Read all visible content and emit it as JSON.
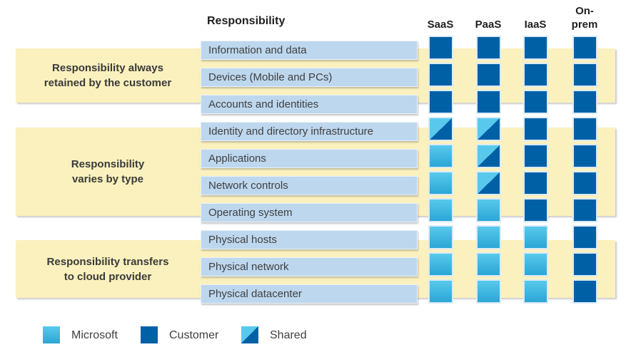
{
  "header": {
    "responsibility_label": "Responsibility",
    "columns": [
      "SaaS",
      "PaaS",
      "IaaS",
      "On-\nprem"
    ]
  },
  "bands": [
    {
      "label": "Responsibility always\nretained by the customer"
    },
    {
      "label": "Responsibility\nvaries by type"
    },
    {
      "label": "Responsibility transfers\nto cloud provider"
    }
  ],
  "rows": [
    {
      "label": "Information and data",
      "cells": [
        "customer",
        "customer",
        "customer",
        "customer"
      ]
    },
    {
      "label": "Devices (Mobile and PCs)",
      "cells": [
        "customer",
        "customer",
        "customer",
        "customer"
      ]
    },
    {
      "label": "Accounts and identities",
      "cells": [
        "customer",
        "customer",
        "customer",
        "customer"
      ]
    },
    {
      "label": "Identity and directory infrastructure",
      "cells": [
        "shared",
        "shared",
        "customer",
        "customer"
      ]
    },
    {
      "label": "Applications",
      "cells": [
        "microsoft",
        "shared",
        "customer",
        "customer"
      ]
    },
    {
      "label": "Network controls",
      "cells": [
        "microsoft",
        "shared",
        "customer",
        "customer"
      ]
    },
    {
      "label": "Operating system",
      "cells": [
        "microsoft",
        "microsoft",
        "customer",
        "customer"
      ]
    },
    {
      "label": "Physical hosts",
      "cells": [
        "microsoft",
        "microsoft",
        "microsoft",
        "customer"
      ]
    },
    {
      "label": "Physical network",
      "cells": [
        "microsoft",
        "microsoft",
        "microsoft",
        "customer"
      ]
    },
    {
      "label": "Physical datacenter",
      "cells": [
        "microsoft",
        "microsoft",
        "microsoft",
        "customer"
      ]
    }
  ],
  "legend": [
    {
      "label": "Microsoft",
      "type": "microsoft"
    },
    {
      "label": "Customer",
      "type": "customer"
    },
    {
      "label": "Shared",
      "type": "shared"
    }
  ],
  "colors": {
    "customer": "#0060A6",
    "microsoft_light": "#58C9EC",
    "microsoft_dark": "#2BA6D6",
    "band_yellow": "#FBF1BE",
    "row_box": "#BDD7EE"
  }
}
